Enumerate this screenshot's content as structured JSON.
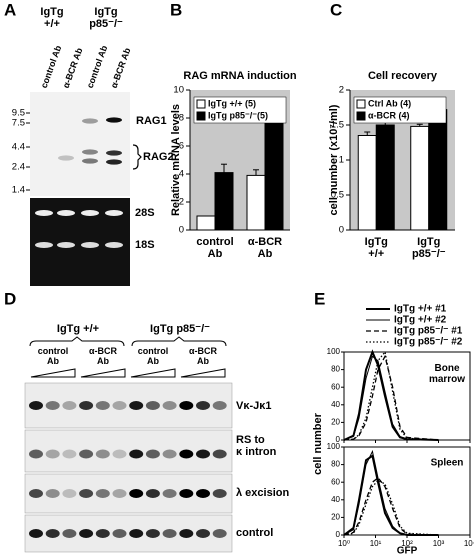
{
  "figure": {
    "panel_letters": [
      "A",
      "B",
      "C",
      "D",
      "E"
    ],
    "gel_a": {
      "groups": [
        "IgTg\n+/+",
        "IgTg\np85⁻/⁻"
      ],
      "lanes": [
        "control Ab",
        "α-BCR Ab",
        "control Ab",
        "α-BCR Ab"
      ],
      "markers": [
        "9.5",
        "7.5",
        "4.4",
        "2.4",
        "1.4"
      ],
      "bands": [
        "RAG1",
        "RAG2",
        "28S",
        "18S"
      ]
    },
    "gel_d": {
      "groups": [
        "IgTg +/+",
        "IgTg p85⁻/⁻"
      ],
      "treatments": [
        "control\nAb",
        "α-BCR\nAb",
        "control\nAb",
        "α-BCR\nAb"
      ],
      "rows": [
        "Vκ-Jκ1",
        "RS to\nκ intron",
        "λ excision",
        "control"
      ]
    }
  },
  "chart_data": [
    {
      "type": "bar",
      "title": "RAG mRNA induction",
      "y_label": "Relative mRNA levels",
      "categories": [
        "control\nAb",
        "α-BCR\nAb"
      ],
      "series": [
        {
          "name": "IgTg +/+ (5)",
          "color": "#ffffff",
          "values": [
            1,
            3.9
          ],
          "errors": [
            0,
            0.4
          ]
        },
        {
          "name": "IgTg p85⁻/⁻(5)",
          "color": "#000000",
          "values": [
            4.1,
            7.7
          ],
          "errors": [
            0.6,
            1.1
          ]
        }
      ],
      "ylim": [
        0,
        10
      ],
      "yticks": [
        0,
        2,
        4,
        6,
        8,
        10
      ],
      "grid": false,
      "legend": "upper left",
      "background": "#c8c8c8"
    },
    {
      "type": "bar",
      "title": "Cell recovery",
      "y_label": "cell number (x10⁷/ml)",
      "categories": [
        "IgTg\n+/+",
        "IgTg\np85⁻/⁻"
      ],
      "series": [
        {
          "name": "Ctrl Ab (4)",
          "color": "#ffffff",
          "values": [
            1.35,
            1.48
          ],
          "errors": [
            0.05,
            0.03
          ]
        },
        {
          "name": "α-BCR (4)",
          "color": "#000000",
          "values": [
            1.5,
            1.72
          ],
          "errors": [
            0.08,
            0.1
          ]
        }
      ],
      "ylim": [
        0,
        2
      ],
      "yticks": [
        0,
        0.5,
        1,
        1.5,
        2
      ],
      "grid": false,
      "legend": "upper left",
      "background": "#c8c8c8"
    },
    {
      "type": "line",
      "y_label": "cell number",
      "x_label": "GFP",
      "panel_labels": [
        "Bone\nmarrow",
        "Spleen"
      ],
      "x": [
        1,
        2,
        3,
        5,
        8,
        12,
        20,
        35,
        60,
        100,
        1000
      ],
      "xscale": "log",
      "xlim": [
        1,
        10000
      ],
      "xticks": [
        {
          "value": 1,
          "label": "10⁰"
        },
        {
          "value": 10,
          "label": "10¹"
        },
        {
          "value": 100,
          "label": "10²"
        },
        {
          "value": 1000,
          "label": "10³"
        },
        {
          "value": 10000,
          "label": "10⁴"
        }
      ],
      "ylim": [
        0,
        100
      ],
      "yticks": [
        0,
        20,
        40,
        60,
        80,
        100
      ],
      "legend": "upper right",
      "series": [
        {
          "name": "IgTg +/+ #1",
          "color": "#000000",
          "dash": "solid",
          "linewidth": 2,
          "values": [
            [
              0,
              5,
              30,
              80,
              100,
              85,
              50,
              15,
              3,
              1,
              0
            ],
            [
              0,
              8,
              40,
              85,
              90,
              60,
              25,
              8,
              2,
              0,
              0
            ]
          ]
        },
        {
          "name": "IgTg +/+ #2",
          "color": "#000000",
          "dash": "solid",
          "linewidth": 1,
          "values": [
            [
              0,
              4,
              25,
              70,
              95,
              90,
              55,
              18,
              4,
              1,
              0
            ],
            [
              0,
              6,
              35,
              80,
              95,
              65,
              30,
              10,
              2,
              0,
              0
            ]
          ]
        },
        {
          "name": "IgTg p85⁻/⁻ #1",
          "color": "#000000",
          "dash": "dashed",
          "linewidth": 1.3,
          "values": [
            [
              0,
              1,
              5,
              20,
              50,
              80,
              95,
              60,
              15,
              3,
              0
            ],
            [
              0,
              3,
              15,
              40,
              60,
              65,
              55,
              30,
              8,
              1,
              0
            ]
          ]
        },
        {
          "name": "IgTg p85⁻/⁻ #2",
          "color": "#000000",
          "dash": "dotted",
          "linewidth": 1.3,
          "values": [
            [
              0,
              1,
              6,
              25,
              60,
              90,
              100,
              55,
              12,
              2,
              0
            ],
            [
              0,
              2,
              12,
              35,
              55,
              62,
              58,
              35,
              10,
              2,
              0
            ]
          ]
        }
      ]
    }
  ]
}
